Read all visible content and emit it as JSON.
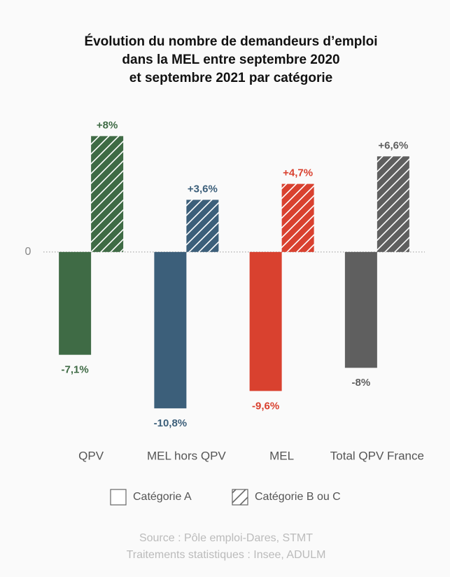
{
  "chart_data": {
    "type": "bar",
    "title": [
      "Évolution du nombre de demandeurs d’emploi",
      "dans la MEL entre septembre 2020",
      "et septembre 2021 par catégorie"
    ],
    "categories": [
      "QPV",
      "MEL hors QPV",
      "MEL",
      "Total QPV France"
    ],
    "colors": [
      "#3f6b45",
      "#3c5f7a",
      "#d9412f",
      "#5f5f5f"
    ],
    "series": [
      {
        "name": "Catégorie A",
        "hatched": false,
        "values": [
          -7.1,
          -10.8,
          -9.6,
          -8
        ],
        "value_labels": [
          "-7,1%",
          "-10,8%",
          "-9,6%",
          "-8%"
        ]
      },
      {
        "name": "Catégorie B ou C",
        "hatched": true,
        "values": [
          8,
          3.6,
          4.7,
          6.6
        ],
        "value_labels": [
          "+8%",
          "+3,6%",
          "+4,7%",
          "+6,6%"
        ]
      }
    ],
    "ylim": [
      -12,
      10
    ],
    "yticks": [
      0
    ],
    "source": [
      "Source : Pôle emploi-Dares, STMT",
      "Traitements statistiques : Insee, ADULM"
    ]
  }
}
